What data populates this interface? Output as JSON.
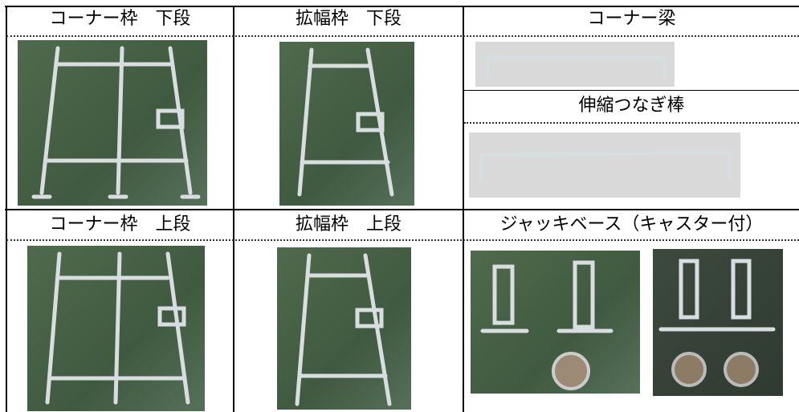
{
  "cells": [
    {
      "title": "コーナー枠　下段"
    },
    {
      "title": "拡幅枠　下段"
    },
    {
      "title": "コーナー梁"
    },
    {
      "title": "伸縮つなぎ棒"
    },
    {
      "title": "コーナー枠　上段"
    },
    {
      "title": "拡幅枠　上段"
    },
    {
      "title": "ジャッキベース（キャスター付）"
    }
  ]
}
